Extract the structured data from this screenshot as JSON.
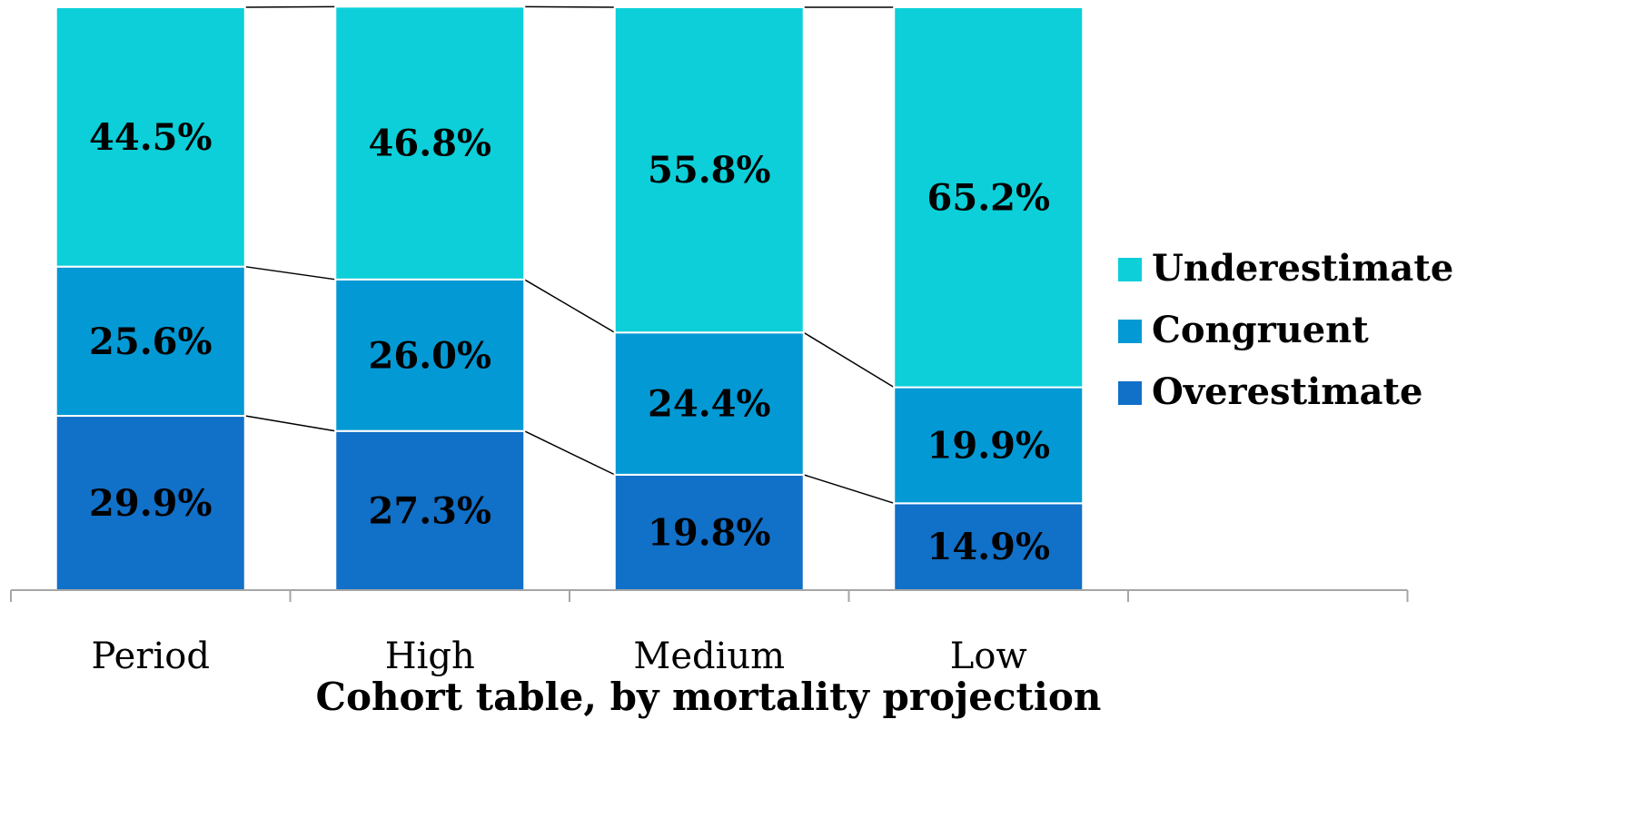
{
  "chart_data": {
    "type": "bar",
    "stacked": true,
    "percent_stacked": true,
    "categories": [
      "Period",
      "High",
      "Medium",
      "Low"
    ],
    "series": [
      {
        "name": "Overestimate",
        "color": "#1170c8",
        "values": [
          29.9,
          27.3,
          19.8,
          14.9
        ],
        "labels": [
          "29.9%",
          "27.3%",
          "19.8%",
          "14.9%"
        ]
      },
      {
        "name": "Congruent",
        "color": "#0399d4",
        "values": [
          25.6,
          26.0,
          24.4,
          19.9
        ],
        "labels": [
          "25.6%",
          "26.0%",
          "24.4%",
          "19.9%"
        ]
      },
      {
        "name": "Underestimate",
        "color": "#0ccfd9",
        "values": [
          44.5,
          46.8,
          55.8,
          65.2
        ],
        "labels": [
          "44.5%",
          "46.8%",
          "55.8%",
          "65.2%"
        ]
      }
    ],
    "legend_order": [
      "Underestimate",
      "Congruent",
      "Overestimate"
    ],
    "title": "",
    "xlabel": "Cohort table, by mortality projection",
    "ylabel": "",
    "ylim": [
      0,
      100
    ],
    "legend_position": "right",
    "series_lines": true,
    "grid": false,
    "axis_color": "#a6a6a6",
    "connector_color": "#000000"
  }
}
